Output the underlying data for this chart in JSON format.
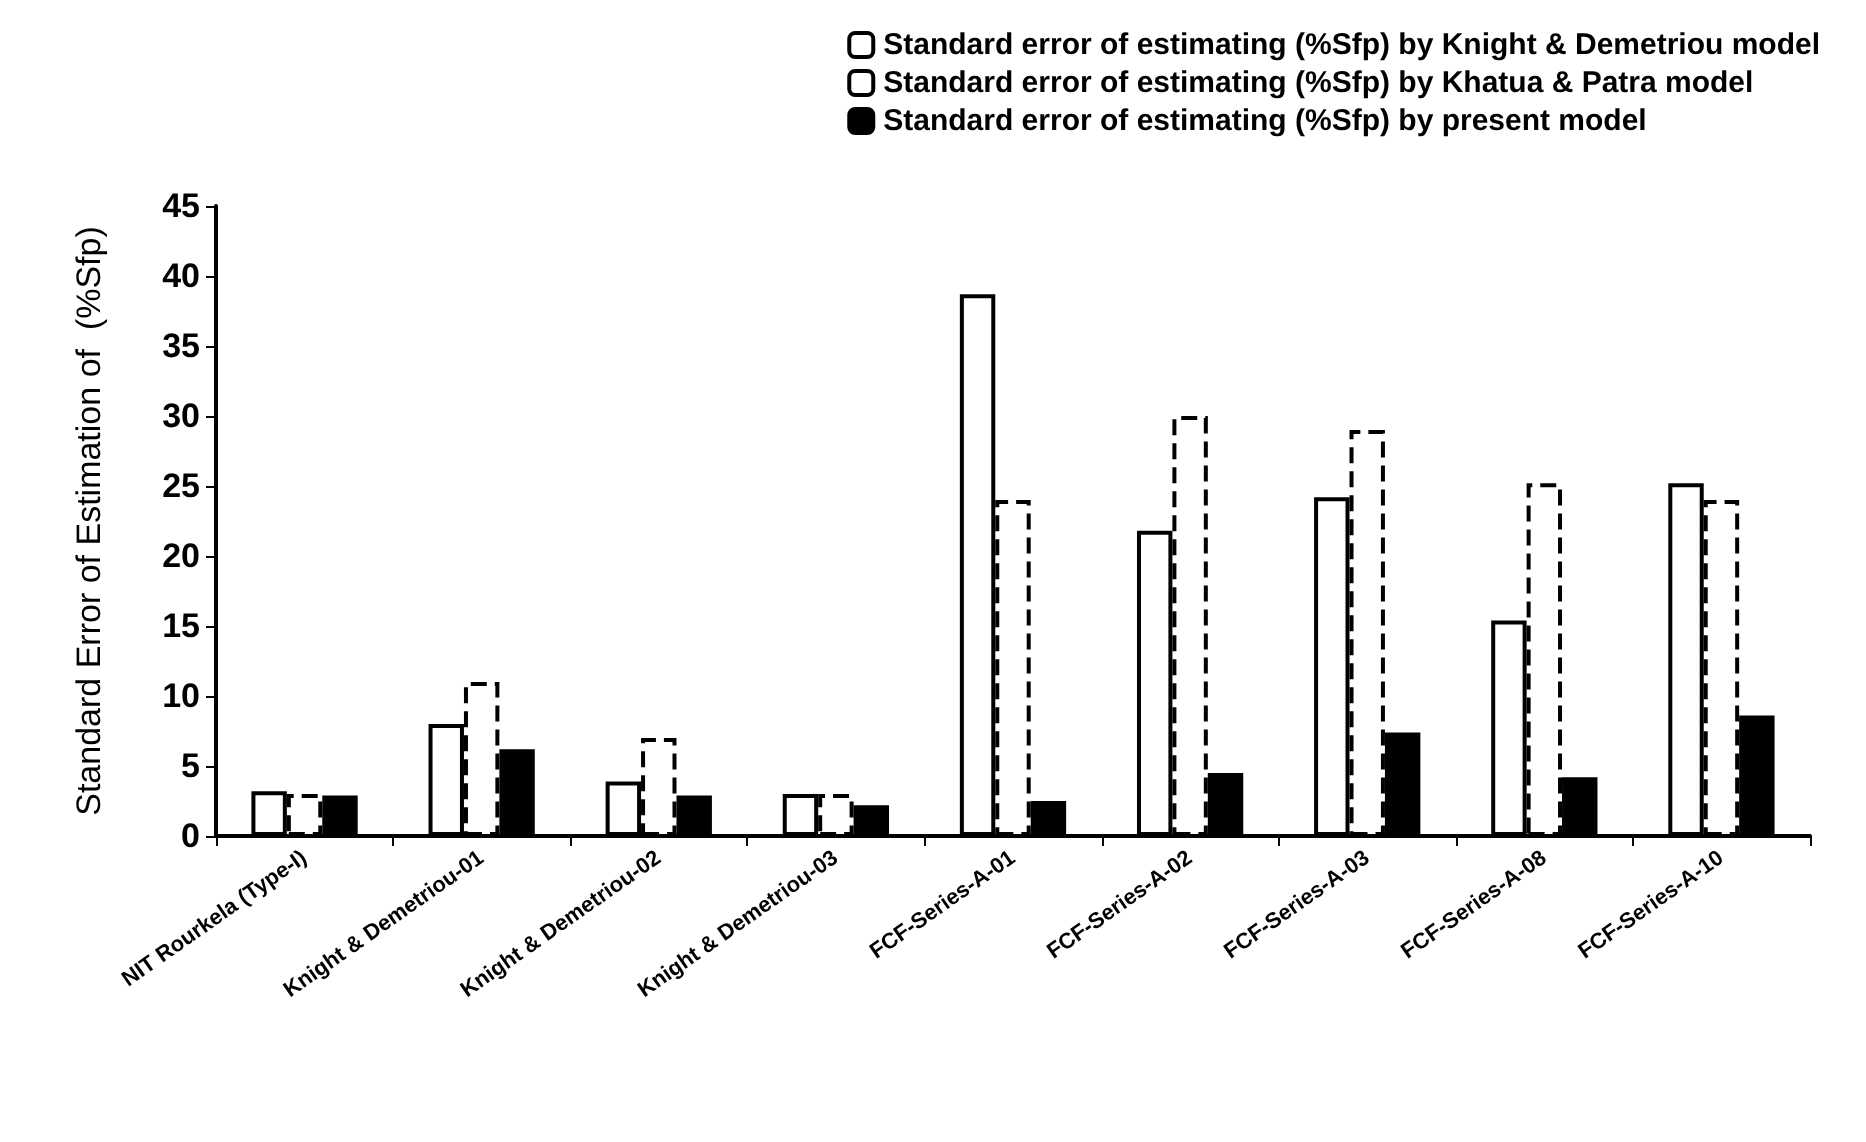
{
  "chart_data": {
    "type": "bar",
    "ylabel": "Standard Error of Estimation of  (%Sfp)",
    "categories": [
      "NIT Rourkela (Type-I)",
      "Knight & Demetriou-01",
      "Knight & Demetriou-02",
      "Knight & Demetriou-03",
      "FCF-Series-A-01",
      "FCF-Series-A-02",
      "FCF-Series-A-03",
      "FCF-Series-A-08",
      "FCF-Series-A-10"
    ],
    "series": [
      {
        "name": "Standard error of estimating (%Sfp) by Knight & Demetriou model",
        "color": "#ffffff",
        "line_style": "solid",
        "values": [
          3.2,
          8,
          3.9,
          3,
          38.7,
          21.8,
          24.2,
          15.4,
          25.2
        ]
      },
      {
        "name": "Standard error of estimating (%Sfp) by Khatua & Patra model",
        "color": "#ffffff",
        "line_style": "dashed",
        "values": [
          3,
          11,
          7,
          3,
          24,
          30,
          29,
          25.2,
          24
        ]
      },
      {
        "name": "Standard error of estimating (%Sfp) by present model",
        "color": "#000000",
        "line_style": "solid",
        "values": [
          2.9,
          6.2,
          2.9,
          2.2,
          2.5,
          4.5,
          7.4,
          4.2,
          8.6
        ]
      }
    ],
    "ylim": [
      0,
      45
    ],
    "yticks": [
      0,
      5,
      10,
      15,
      20,
      25,
      30,
      35,
      40,
      45
    ],
    "grid": false,
    "legend": "top right"
  }
}
